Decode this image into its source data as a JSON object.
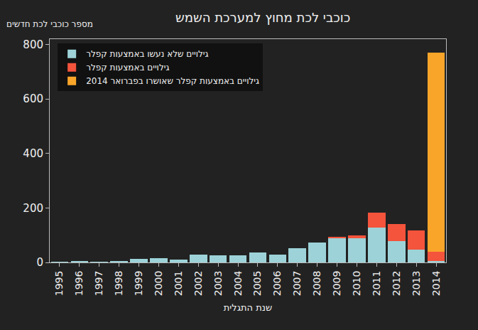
{
  "chart_data": {
    "type": "bar",
    "stacked": true,
    "title": "כוכבי לכת מחוץ למערכת השמש",
    "y_label": "מספר כוכבי לכת חדשים",
    "x_label": "שנת התגלית",
    "categories": [
      "1995",
      "1996",
      "1997",
      "1998",
      "1999",
      "2000",
      "2001",
      "2002",
      "2003",
      "2004",
      "2005",
      "2006",
      "2007",
      "2008",
      "2009",
      "2010",
      "2011",
      "2012",
      "2013",
      "2014"
    ],
    "series": [
      {
        "name": "גילויים שלא נעשו באמצעות קפלר",
        "color": "#9dd3d8",
        "values": [
          1,
          6,
          1,
          6,
          13,
          16,
          11,
          30,
          25,
          25,
          37,
          30,
          52,
          72,
          90,
          88,
          128,
          78,
          48,
          5
        ]
      },
      {
        "name": "גילויים באמצעות קפלר",
        "color": "#f4533c",
        "values": [
          0,
          0,
          0,
          0,
          0,
          0,
          0,
          0,
          0,
          0,
          0,
          0,
          0,
          0,
          4,
          10,
          55,
          62,
          70,
          35
        ]
      },
      {
        "name": "גילויים באמצעות קפלר שאושרו בפברואר 2014",
        "color": "#f9a52a",
        "values": [
          0,
          0,
          0,
          0,
          0,
          0,
          0,
          0,
          0,
          0,
          0,
          0,
          0,
          0,
          0,
          0,
          0,
          0,
          0,
          730
        ]
      }
    ],
    "ylim": [
      0,
      820
    ],
    "yticks": [
      0,
      200,
      400,
      600,
      800
    ],
    "grid": false,
    "legend": "top-left"
  }
}
